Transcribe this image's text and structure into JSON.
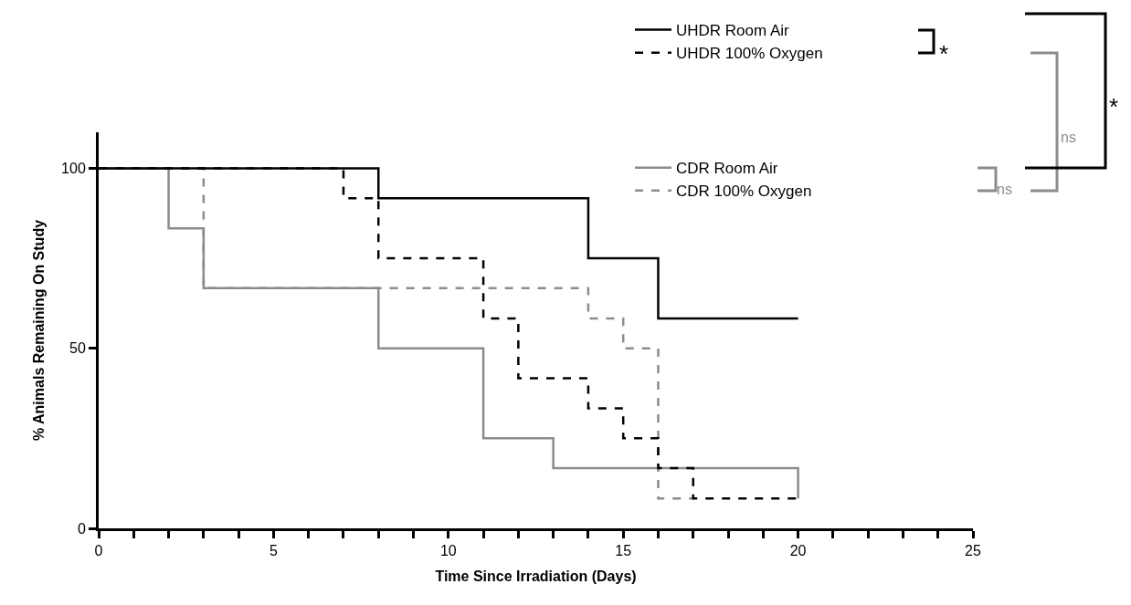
{
  "chart_data": {
    "type": "step",
    "xlabel": "Time Since Irradiation (Days)",
    "ylabel": "% Animals Remaining On Study",
    "series": [
      {
        "name": "UHDR Room Air",
        "color": "#000000",
        "line_style": "solid",
        "x": [
          0,
          8,
          14,
          16,
          20
        ],
        "values": [
          100,
          91.7,
          75,
          58.3,
          58.3
        ]
      },
      {
        "name": "UHDR 100% Oxygen",
        "color": "#000000",
        "line_style": "dashed",
        "x": [
          0,
          7,
          8,
          11,
          12,
          14,
          15,
          16,
          17,
          20
        ],
        "values": [
          100,
          91.7,
          75,
          58.3,
          41.7,
          33.3,
          25,
          16.7,
          8.3,
          8.3
        ]
      },
      {
        "name": "CDR Room Air",
        "color": "#8c8c8c",
        "line_style": "solid",
        "x": [
          0,
          2,
          3,
          8,
          11,
          13,
          20
        ],
        "values": [
          100,
          83.3,
          66.7,
          50,
          25,
          16.7,
          8.3
        ]
      },
      {
        "name": "CDR 100% Oxygen",
        "color": "#8c8c8c",
        "line_style": "dashed",
        "x": [
          0,
          3,
          14,
          15,
          16,
          17
        ],
        "values": [
          100,
          66.7,
          58.3,
          50,
          8.3,
          8.3
        ]
      }
    ],
    "xlim": [
      0,
      25
    ],
    "ylim": [
      0,
      110
    ],
    "xticks": [
      0,
      {
        "value": 1,
        "label": null
      },
      {
        "value": 2,
        "label": null
      },
      {
        "value": 3,
        "label": null
      },
      {
        "value": 4,
        "label": null
      },
      5,
      {
        "value": 6,
        "label": null
      },
      {
        "value": 7,
        "label": null
      },
      {
        "value": 8,
        "label": null
      },
      {
        "value": 9,
        "label": null
      },
      10,
      {
        "value": 11,
        "label": null
      },
      {
        "value": 12,
        "label": null
      },
      {
        "value": 13,
        "label": null
      },
      {
        "value": 14,
        "label": null
      },
      15,
      {
        "value": 16,
        "label": null
      },
      {
        "value": 17,
        "label": null
      },
      {
        "value": 18,
        "label": null
      },
      {
        "value": 19,
        "label": null
      },
      20,
      {
        "value": 21,
        "label": null
      },
      {
        "value": 22,
        "label": null
      },
      {
        "value": 23,
        "label": null
      },
      {
        "value": 24,
        "label": null
      },
      25
    ],
    "yticks": [
      0,
      50,
      100
    ],
    "legend": "top right",
    "marker": "none",
    "annotations": [
      "*",
      "ns",
      "*",
      "ns"
    ]
  }
}
